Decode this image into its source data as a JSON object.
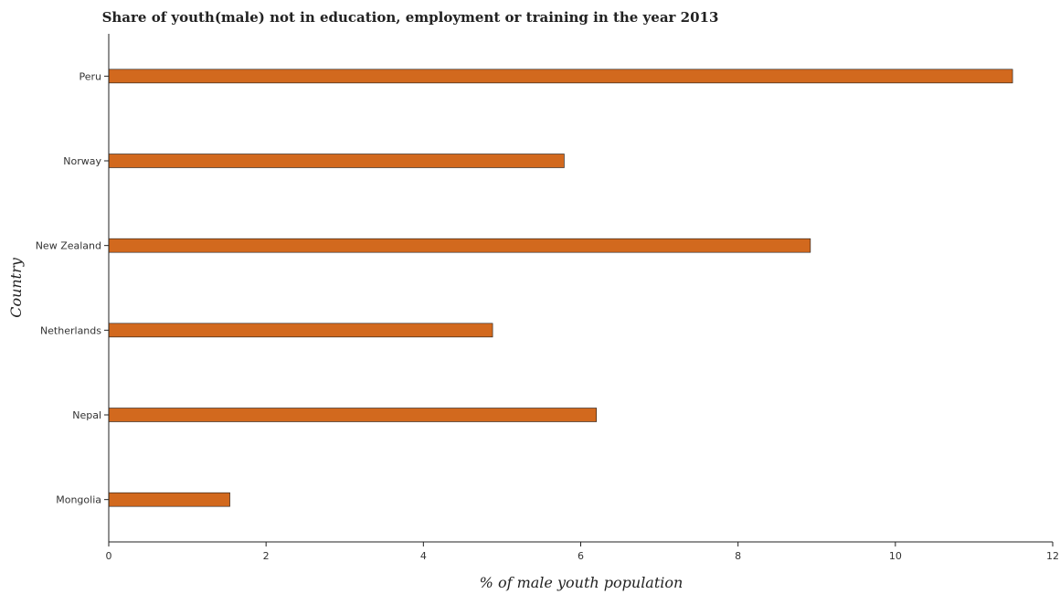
{
  "chart_data": {
    "type": "bar",
    "orientation": "horizontal",
    "title": "Share of youth(male) not in education, employment or training in the year 2013",
    "xlabel": "% of male youth population",
    "ylabel": "Country",
    "categories": [
      "Mongolia",
      "Nepal",
      "Netherlands",
      "New Zealand",
      "Norway",
      "Peru"
    ],
    "values": [
      1.54,
      6.2,
      4.88,
      8.92,
      5.79,
      11.49
    ],
    "xlim": [
      0,
      12
    ],
    "xticks": [
      0,
      2,
      4,
      6,
      8,
      10,
      12
    ],
    "bar_color": "#d2691e",
    "grid": false,
    "legend": "none"
  }
}
